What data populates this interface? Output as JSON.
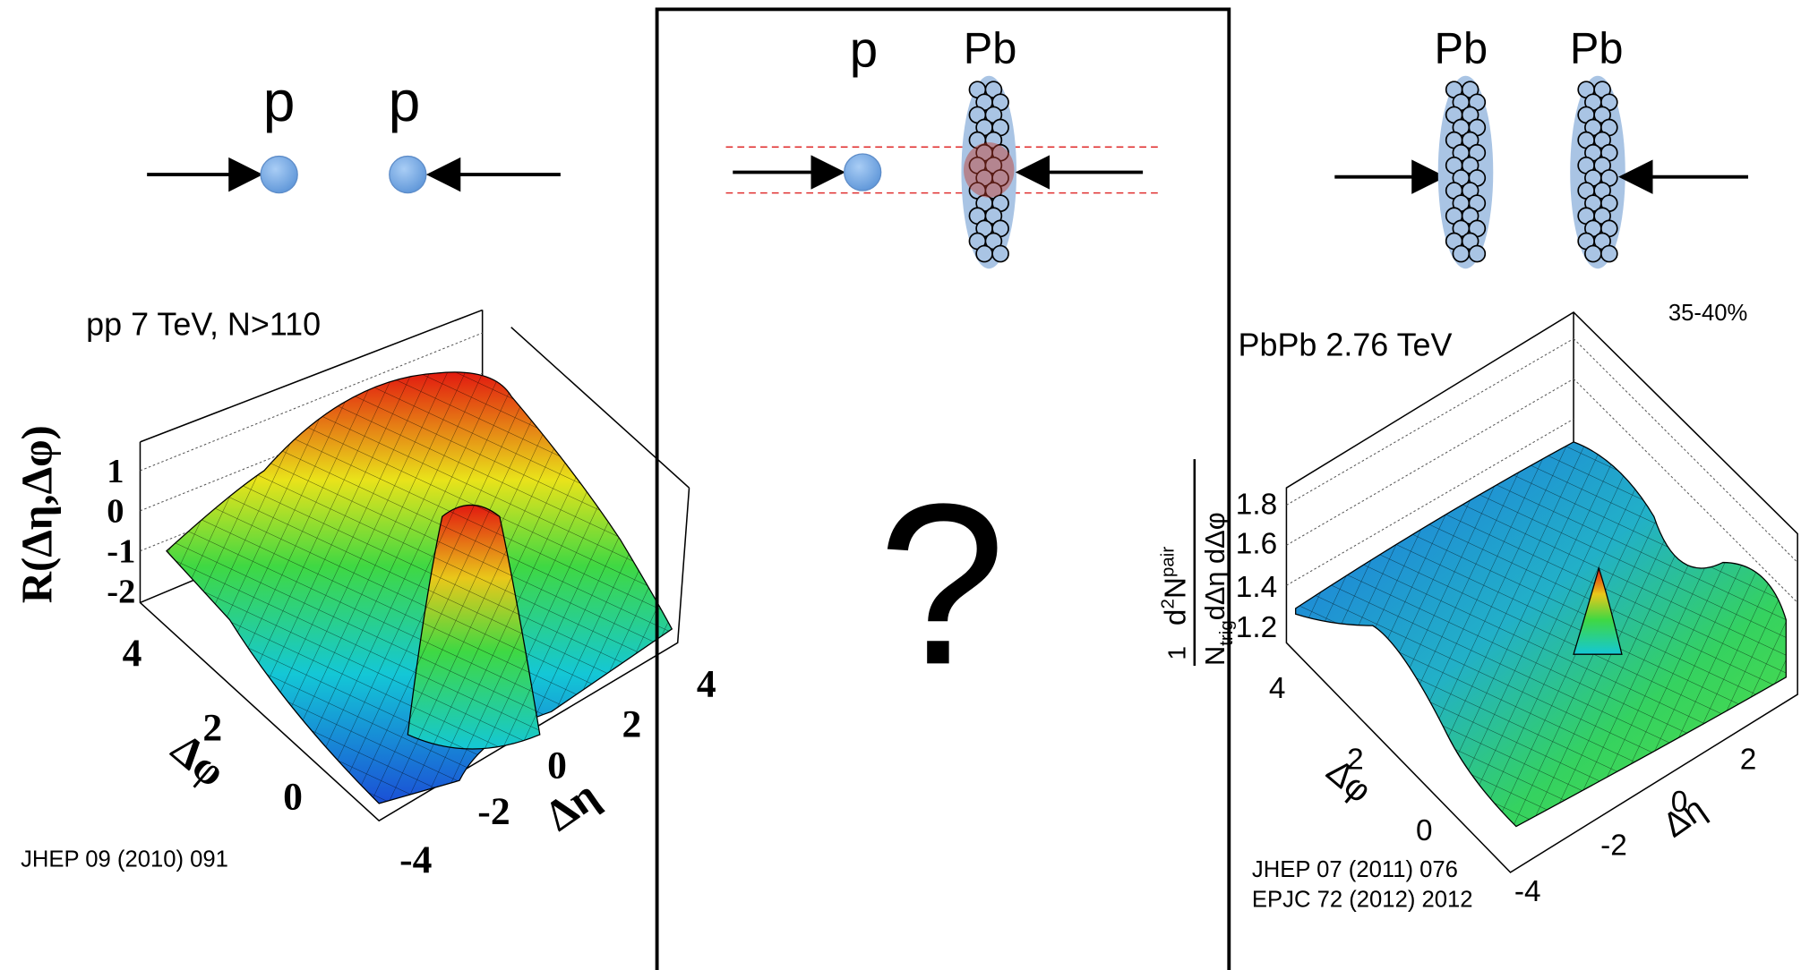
{
  "left": {
    "beam_labels": [
      "p",
      "p"
    ],
    "title": "pp 7 TeV, N>110",
    "z_label": "R(Δη,Δφ)",
    "z_ticks": [
      "1",
      "0",
      "-1",
      "-2"
    ],
    "phi_ticks": [
      "4",
      "2",
      "0"
    ],
    "phi_label": "Δφ",
    "eta_ticks": [
      "-4",
      "-2",
      "0",
      "2",
      "4"
    ],
    "eta_label": "Δη",
    "reference": "JHEP 09 (2010) 091"
  },
  "middle": {
    "beam_labels": [
      "p",
      "Pb"
    ],
    "question": "?"
  },
  "right": {
    "beam_labels": [
      "Pb",
      "Pb"
    ],
    "centrality": "35-40%",
    "title": "PbPb 2.76 TeV",
    "z_ticks": [
      "1.8",
      "1.6",
      "1.4",
      "1.2"
    ],
    "z_label": {
      "one": "1",
      "d": "d",
      "two": "2",
      "n": "N",
      "pair": "pair",
      "n_den": "N",
      "trig": "trig",
      "rest": "dΔη dΔφ"
    },
    "phi_ticks": [
      "4",
      "2",
      "0"
    ],
    "phi_label": "Δφ",
    "eta_ticks": [
      "-4",
      "-2",
      "0",
      "2"
    ],
    "eta_label": "Δη",
    "references": [
      "JHEP 07 (2011) 076",
      "EPJC 72 (2012) 2012"
    ]
  }
}
